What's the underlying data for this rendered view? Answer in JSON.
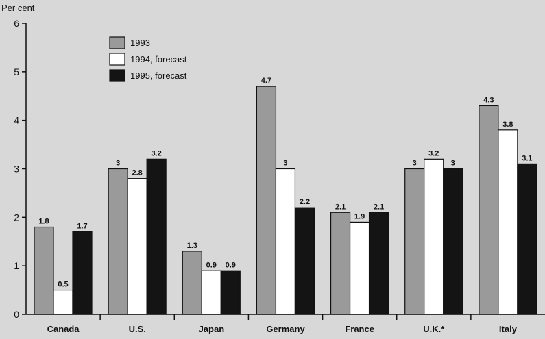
{
  "chart_data": {
    "type": "bar",
    "ylabel": "Per cent",
    "ylim": [
      0,
      6
    ],
    "yticks": [
      0,
      1,
      2,
      3,
      4,
      5,
      6
    ],
    "categories": [
      "Canada",
      "U.S.",
      "Japan",
      "Germany",
      "France",
      "U.K.*",
      "Italy"
    ],
    "series": [
      {
        "name": "1993",
        "values": [
          1.8,
          3,
          1.3,
          4.7,
          2.1,
          3,
          4.3
        ],
        "labels": [
          "1.8",
          "3",
          "1.3",
          "4.7",
          "2.1",
          "3",
          "4.3"
        ],
        "color": "#9a9a9a",
        "stroke": "#111111"
      },
      {
        "name": "1994, forecast",
        "values": [
          0.5,
          2.8,
          0.9,
          3,
          1.9,
          3.2,
          3.8
        ],
        "labels": [
          "0.5",
          "2.8",
          "0.9",
          "3",
          "1.9",
          "3.2",
          "3.8"
        ],
        "color": "#ffffff",
        "stroke": "#111111"
      },
      {
        "name": "1995, forecast",
        "values": [
          1.7,
          3.2,
          0.9,
          2.2,
          2.1,
          3,
          3.1
        ],
        "labels": [
          "1.7",
          "3.2",
          "0.9",
          "2.2",
          "2.1",
          "3",
          "3.1"
        ],
        "color": "#141414",
        "stroke": "#111111"
      }
    ],
    "grid": false,
    "legend_position": "top-left"
  }
}
